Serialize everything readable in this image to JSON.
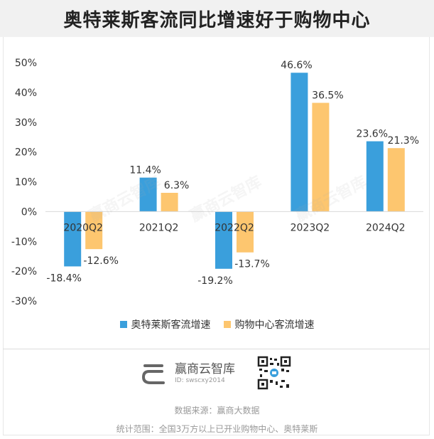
{
  "title": "奥特莱斯客流同比增速好于购物中心",
  "chart_data": {
    "type": "bar",
    "categories": [
      "2020Q2",
      "2021Q2",
      "2022Q2",
      "2023Q2",
      "2024Q2"
    ],
    "series": [
      {
        "name": "奥特莱斯客流增速",
        "values": [
          -18.4,
          11.4,
          -19.2,
          46.6,
          23.6
        ],
        "labels": [
          "-18.4%",
          "11.4%",
          "-19.2%",
          "46.6%",
          "23.6%"
        ],
        "color": "#3a9fdc"
      },
      {
        "name": "购物中心客流增速",
        "values": [
          -12.6,
          6.3,
          -13.7,
          36.5,
          21.3
        ],
        "labels": [
          "-12.6%",
          "6.3%",
          "-13.7%",
          "36.5%",
          "21.3%"
        ],
        "color": "#fdc66f"
      }
    ],
    "ylim": [
      -30,
      50
    ],
    "yticks": [
      50,
      40,
      30,
      20,
      10,
      0,
      -10,
      -20,
      -30
    ],
    "ytick_labels": [
      "50%",
      "40%",
      "30%",
      "20%",
      "10%",
      "0%",
      "-10%",
      "-20%",
      "-30%"
    ],
    "legend": "bottom",
    "grid": false
  },
  "brand": {
    "name": "赢商云智库",
    "id": "ID: swscxy2014",
    "watermark": "赢商云智库"
  },
  "footer": {
    "source": "数据来源：赢商大数据",
    "scope": "统计范围：全国3万方以上已开业购物中心、奥特莱斯"
  },
  "colors": {
    "axis": "#d9d9d9",
    "text": "#333333",
    "muted": "#999999"
  }
}
